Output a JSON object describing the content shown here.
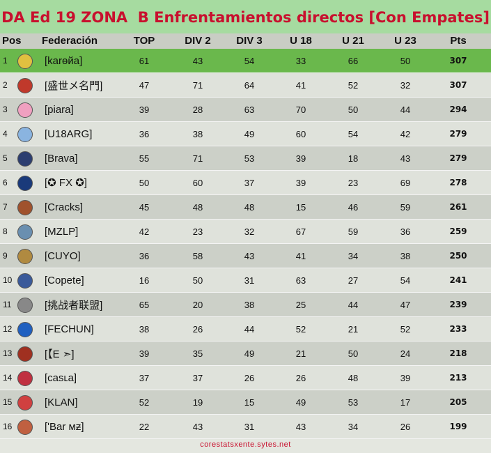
{
  "title": "DA Ed 19 ZONA  B Enfrentamientos directos [Con Empates]",
  "table": {
    "columns": [
      "Pos",
      "Federación",
      "TOP",
      "DIV 2",
      "DIV 3",
      "U 18",
      "U 21",
      "U 23",
      "Pts"
    ],
    "rows": [
      [
        1,
        "[karɵйa]",
        61,
        43,
        54,
        33,
        66,
        50,
        307
      ],
      [
        2,
        "[盛世メ名門]",
        47,
        71,
        64,
        41,
        52,
        32,
        307
      ],
      [
        3,
        "[piara]",
        39,
        28,
        63,
        70,
        50,
        44,
        294
      ],
      [
        4,
        "[U18ARG]",
        36,
        38,
        49,
        60,
        54,
        42,
        279
      ],
      [
        5,
        "[Brava]",
        55,
        71,
        53,
        39,
        18,
        43,
        279
      ],
      [
        6,
        "[✪ FX ✪]",
        50,
        60,
        37,
        39,
        23,
        69,
        278
      ],
      [
        7,
        "[Cracks]",
        45,
        48,
        48,
        15,
        46,
        59,
        261
      ],
      [
        8,
        "[MZLP]",
        42,
        23,
        32,
        67,
        59,
        36,
        259
      ],
      [
        9,
        "[CUYO]",
        36,
        58,
        43,
        41,
        34,
        38,
        250
      ],
      [
        10,
        "[Copete]",
        16,
        50,
        31,
        63,
        27,
        54,
        241
      ],
      [
        11,
        "[挑战者联盟]",
        65,
        20,
        38,
        25,
        44,
        47,
        239
      ],
      [
        12,
        "[FECHUN]",
        38,
        26,
        44,
        52,
        21,
        52,
        233
      ],
      [
        13,
        "[【E ➣]",
        39,
        35,
        49,
        21,
        50,
        24,
        218
      ],
      [
        14,
        "[casʟa]",
        37,
        37,
        26,
        26,
        48,
        39,
        213
      ],
      [
        15,
        "[KLAN]",
        52,
        19,
        15,
        49,
        53,
        17,
        205
      ],
      [
        16,
        "[ʹBar мƶ]",
        22,
        43,
        31,
        43,
        34,
        26,
        199
      ]
    ]
  },
  "footer": "corestatsxente.sytes.net"
}
